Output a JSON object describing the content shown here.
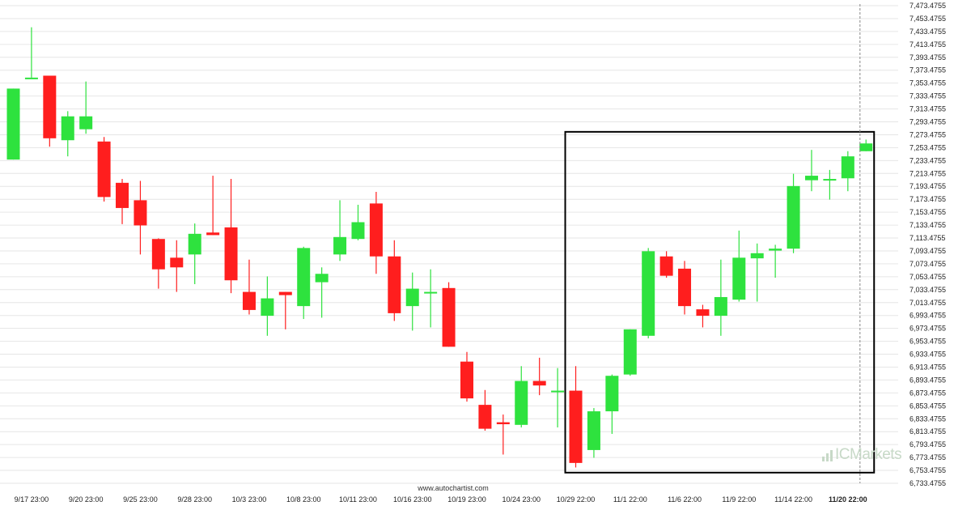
{
  "colors": {
    "up": "#2ee23e",
    "down": "#ff1e1e",
    "grid": "#e6e6e6",
    "box": "#000000",
    "cursor": "#888888"
  },
  "footer": {
    "source": "www.autochartist.com"
  },
  "brand": {
    "name": "ICMarkets",
    "icon": "bars-logo-icon"
  },
  "chart_data": {
    "type": "candlestick",
    "y_ticks": [
      "6,733.4755",
      "6,753.4755",
      "6,773.4755",
      "6,793.4755",
      "6,813.4755",
      "6,833.4755",
      "6,853.4755",
      "6,873.4755",
      "6,893.4755",
      "6,913.4755",
      "6,933.4755",
      "6,953.4755",
      "6,973.4755",
      "6,993.4755",
      "7,013.4755",
      "7,033.4755",
      "7,053.4755",
      "7,073.4755",
      "7,093.4755",
      "7,113.4755",
      "7,133.4755",
      "7,153.4755",
      "7,173.4755",
      "7,193.4755",
      "7,213.4755",
      "7,233.4755",
      "7,253.4755",
      "7,273.4755",
      "7,293.4755",
      "7,313.4755",
      "7,333.4755",
      "7,353.4755",
      "7,373.4755",
      "7,393.4755",
      "7,413.4755",
      "7,433.4755",
      "7,453.4755",
      "7,473.4755"
    ],
    "ylim": [
      6733.4755,
      7473.4755
    ],
    "x_ticks": [
      {
        "label": "9/17 23:00",
        "index": 1
      },
      {
        "label": "9/20 23:00",
        "index": 4
      },
      {
        "label": "9/25 23:00",
        "index": 7
      },
      {
        "label": "9/28 23:00",
        "index": 10
      },
      {
        "label": "10/3 23:00",
        "index": 13
      },
      {
        "label": "10/8 23:00",
        "index": 16
      },
      {
        "label": "10/11 23:00",
        "index": 19
      },
      {
        "label": "10/16 23:00",
        "index": 22
      },
      {
        "label": "10/19 23:00",
        "index": 25
      },
      {
        "label": "10/24 23:00",
        "index": 28
      },
      {
        "label": "10/29 22:00",
        "index": 31
      },
      {
        "label": "11/1 22:00",
        "index": 34
      },
      {
        "label": "11/6 22:00",
        "index": 37
      },
      {
        "label": "11/9 22:00",
        "index": 40
      },
      {
        "label": "11/14 22:00",
        "index": 43
      },
      {
        "label": "11/20 22:00",
        "index": 46,
        "bold": true
      }
    ],
    "candles": [
      {
        "o": 7235,
        "h": 7345,
        "l": 7235,
        "c": 7345
      },
      {
        "o": 7362,
        "h": 7440,
        "l": 7362,
        "c": 7362
      },
      {
        "o": 7365,
        "h": 7365,
        "l": 7255,
        "c": 7268
      },
      {
        "o": 7265,
        "h": 7310,
        "l": 7240,
        "c": 7302
      },
      {
        "o": 7282,
        "h": 7356,
        "l": 7275,
        "c": 7302
      },
      {
        "o": 7263,
        "h": 7270,
        "l": 7170,
        "c": 7177
      },
      {
        "o": 7199,
        "h": 7205,
        "l": 7135,
        "c": 7160
      },
      {
        "o": 7172,
        "h": 7202,
        "l": 7088,
        "c": 7133
      },
      {
        "o": 7112,
        "h": 7113,
        "l": 7035,
        "c": 7065
      },
      {
        "o": 7083,
        "h": 7110,
        "l": 7030,
        "c": 7068
      },
      {
        "o": 7088,
        "h": 7136,
        "l": 7042,
        "c": 7120
      },
      {
        "o": 7122,
        "h": 7210,
        "l": 7118,
        "c": 7118
      },
      {
        "o": 7130,
        "h": 7205,
        "l": 7028,
        "c": 7048
      },
      {
        "o": 7030,
        "h": 7080,
        "l": 6995,
        "c": 7002
      },
      {
        "o": 6993,
        "h": 7054,
        "l": 6962,
        "c": 7020
      },
      {
        "o": 7030,
        "h": 7030,
        "l": 6972,
        "c": 7025
      },
      {
        "o": 7008,
        "h": 7100,
        "l": 6988,
        "c": 7098
      },
      {
        "o": 7045,
        "h": 7068,
        "l": 6990,
        "c": 7058
      },
      {
        "o": 7088,
        "h": 7172,
        "l": 7078,
        "c": 7115
      },
      {
        "o": 7112,
        "h": 7165,
        "l": 7110,
        "c": 7138
      },
      {
        "o": 7167,
        "h": 7185,
        "l": 7058,
        "c": 7085
      },
      {
        "o": 7085,
        "h": 7110,
        "l": 6985,
        "c": 6997
      },
      {
        "o": 7008,
        "h": 7060,
        "l": 6970,
        "c": 7035
      },
      {
        "o": 7030,
        "h": 7065,
        "l": 6975,
        "c": 7030
      },
      {
        "o": 7036,
        "h": 7045,
        "l": 6945,
        "c": 6945
      },
      {
        "o": 6922,
        "h": 6937,
        "l": 6860,
        "c": 6865
      },
      {
        "o": 6855,
        "h": 6878,
        "l": 6815,
        "c": 6818
      },
      {
        "o": 6828,
        "h": 6840,
        "l": 6778,
        "c": 6825
      },
      {
        "o": 6824,
        "h": 6915,
        "l": 6820,
        "c": 6892
      },
      {
        "o": 6892,
        "h": 6928,
        "l": 6870,
        "c": 6885
      },
      {
        "o": 6877,
        "h": 6912,
        "l": 6820,
        "c": 6877
      },
      {
        "o": 6877,
        "h": 6915,
        "l": 6758,
        "c": 6765
      },
      {
        "o": 6785,
        "h": 6850,
        "l": 6773,
        "c": 6845
      },
      {
        "o": 6845,
        "h": 6902,
        "l": 6810,
        "c": 6900
      },
      {
        "o": 6902,
        "h": 6972,
        "l": 6900,
        "c": 6972
      },
      {
        "o": 6962,
        "h": 7098,
        "l": 6958,
        "c": 7093
      },
      {
        "o": 7085,
        "h": 7093,
        "l": 7052,
        "c": 7055
      },
      {
        "o": 7066,
        "h": 7078,
        "l": 6995,
        "c": 7008
      },
      {
        "o": 7003,
        "h": 7010,
        "l": 6975,
        "c": 6993
      },
      {
        "o": 6993,
        "h": 7080,
        "l": 6962,
        "c": 7022
      },
      {
        "o": 7018,
        "h": 7125,
        "l": 7015,
        "c": 7083
      },
      {
        "o": 7082,
        "h": 7105,
        "l": 7015,
        "c": 7090
      },
      {
        "o": 7094,
        "h": 7103,
        "l": 7052,
        "c": 7097
      },
      {
        "o": 7097,
        "h": 7213,
        "l": 7090,
        "c": 7194
      },
      {
        "o": 7203,
        "h": 7250,
        "l": 7186,
        "c": 7210
      },
      {
        "o": 7205,
        "h": 7219,
        "l": 7173,
        "c": 7205
      },
      {
        "o": 7206,
        "h": 7248,
        "l": 7186,
        "c": 7240
      },
      {
        "o": 7248,
        "h": 7266,
        "l": 7248,
        "c": 7260
      }
    ],
    "pattern_box": {
      "from_index": 31,
      "to_index": 47,
      "top": 7278,
      "bottom": 6750
    }
  }
}
